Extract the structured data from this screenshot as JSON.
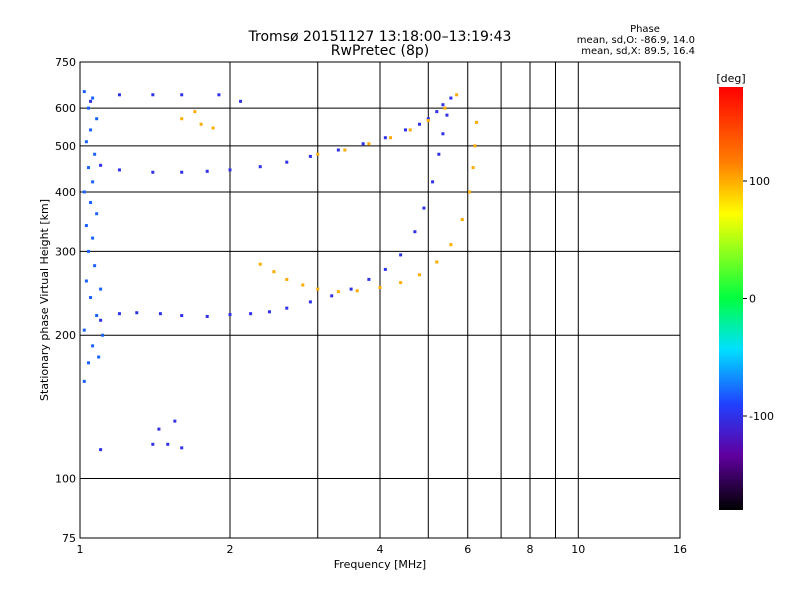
{
  "chart_data": {
    "type": "scatter",
    "title": "Tromsø 20151127 13:18:00–13:19:43",
    "subtitle": "RwPretec (8p)",
    "xlabel": "Frequency [MHz]",
    "ylabel": "Stationary phase Virtual Height [km]",
    "x_scale": "log",
    "y_scale": "log",
    "xlim": [
      1,
      16
    ],
    "ylim": [
      75,
      750
    ],
    "x_ticks": [
      1,
      2,
      4,
      6,
      8,
      10,
      16
    ],
    "x_tick_labels": [
      "1",
      "2",
      "4",
      "6",
      "8",
      "10",
      "16"
    ],
    "y_ticks": [
      75,
      100,
      200,
      300,
      400,
      500,
      600,
      750
    ],
    "y_tick_labels": [
      "75",
      "100",
      "200",
      "300",
      "400",
      "500",
      "600",
      "750"
    ],
    "grid_x": [
      1,
      2,
      3,
      4,
      5,
      6,
      7,
      8,
      9,
      10,
      16
    ],
    "grid_y": [
      75,
      100,
      200,
      300,
      400,
      500,
      600,
      750
    ],
    "stats": {
      "header": "Phase",
      "o_mode": "mean, sd,O: -86.9, 14.0",
      "x_mode": "mean, sd,X:  89.5, 16.4"
    },
    "colorbar": {
      "label": "[deg]",
      "range": [
        -180,
        180
      ],
      "ticks": [
        100,
        0,
        -100
      ],
      "tick_labels": [
        "100",
        "0",
        "-100"
      ]
    },
    "series": [
      {
        "mode": "O",
        "phase": -100,
        "points": [
          [
            1.1,
            215
          ],
          [
            1.2,
            222
          ],
          [
            1.3,
            223
          ],
          [
            1.45,
            222
          ],
          [
            1.6,
            220
          ],
          [
            1.8,
            219
          ],
          [
            2.0,
            221
          ],
          [
            2.2,
            222
          ],
          [
            2.4,
            224
          ],
          [
            2.6,
            228
          ],
          [
            2.9,
            235
          ],
          [
            3.2,
            242
          ],
          [
            3.5,
            250
          ],
          [
            3.8,
            262
          ],
          [
            4.1,
            275
          ],
          [
            4.4,
            295
          ],
          [
            4.7,
            330
          ],
          [
            4.9,
            370
          ],
          [
            5.1,
            420
          ],
          [
            5.25,
            480
          ],
          [
            5.35,
            530
          ],
          [
            5.45,
            580
          ],
          [
            5.55,
            630
          ],
          [
            1.1,
            455
          ],
          [
            1.2,
            445
          ],
          [
            1.4,
            440
          ],
          [
            1.6,
            440
          ],
          [
            1.8,
            442
          ],
          [
            2.0,
            445
          ],
          [
            2.3,
            452
          ],
          [
            2.6,
            462
          ],
          [
            2.9,
            475
          ],
          [
            3.3,
            490
          ],
          [
            3.7,
            505
          ],
          [
            4.1,
            520
          ],
          [
            4.5,
            540
          ],
          [
            4.8,
            555
          ],
          [
            5.0,
            570
          ],
          [
            5.2,
            590
          ],
          [
            5.35,
            610
          ],
          [
            1.05,
            620
          ],
          [
            1.2,
            640
          ],
          [
            1.4,
            640
          ],
          [
            1.6,
            640
          ],
          [
            1.9,
            640
          ],
          [
            2.1,
            620
          ],
          [
            1.4,
            118
          ],
          [
            1.5,
            118
          ],
          [
            1.6,
            116
          ],
          [
            1.1,
            115
          ],
          [
            1.55,
            132
          ],
          [
            1.44,
            127
          ]
        ]
      },
      {
        "mode": "X",
        "phase": 100,
        "points": [
          [
            2.3,
            282
          ],
          [
            2.45,
            272
          ],
          [
            2.6,
            262
          ],
          [
            2.8,
            255
          ],
          [
            3.0,
            250
          ],
          [
            3.3,
            247
          ],
          [
            3.6,
            248
          ],
          [
            4.0,
            252
          ],
          [
            4.4,
            258
          ],
          [
            4.8,
            268
          ],
          [
            5.2,
            285
          ],
          [
            5.55,
            310
          ],
          [
            5.85,
            350
          ],
          [
            6.05,
            400
          ],
          [
            6.15,
            450
          ],
          [
            6.2,
            500
          ],
          [
            6.25,
            560
          ],
          [
            3.0,
            480
          ],
          [
            3.4,
            490
          ],
          [
            3.8,
            505
          ],
          [
            4.2,
            520
          ],
          [
            4.6,
            540
          ],
          [
            5.0,
            565
          ],
          [
            5.4,
            600
          ],
          [
            5.7,
            640
          ],
          [
            1.75,
            555
          ],
          [
            1.85,
            545
          ],
          [
            1.7,
            590
          ],
          [
            1.6,
            570
          ]
        ]
      },
      {
        "mode": "E/spread",
        "phase": -80,
        "points": [
          [
            1.02,
            160
          ],
          [
            1.04,
            175
          ],
          [
            1.06,
            190
          ],
          [
            1.02,
            205
          ],
          [
            1.08,
            220
          ],
          [
            1.05,
            240
          ],
          [
            1.03,
            260
          ],
          [
            1.07,
            280
          ],
          [
            1.04,
            300
          ],
          [
            1.06,
            320
          ],
          [
            1.03,
            340
          ],
          [
            1.08,
            360
          ],
          [
            1.05,
            380
          ],
          [
            1.02,
            400
          ],
          [
            1.06,
            420
          ],
          [
            1.04,
            450
          ],
          [
            1.07,
            480
          ],
          [
            1.03,
            510
          ],
          [
            1.05,
            540
          ],
          [
            1.08,
            570
          ],
          [
            1.04,
            600
          ],
          [
            1.06,
            630
          ],
          [
            1.02,
            650
          ],
          [
            1.09,
            180
          ],
          [
            1.11,
            200
          ],
          [
            1.1,
            250
          ]
        ]
      }
    ]
  }
}
